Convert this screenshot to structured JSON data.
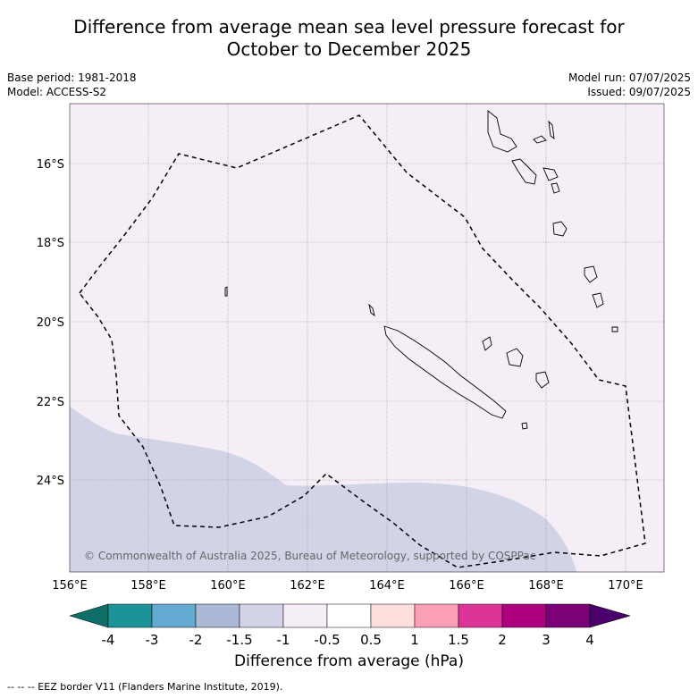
{
  "header": {
    "title_line1": "Difference from average mean sea level pressure forecast for",
    "title_line2": "October to December 2025",
    "base_period": "Base period: 1981-2018",
    "model": "Model: ACCESS-S2",
    "model_run": "Model run: 07/07/2025",
    "issued": "Issued: 09/07/2025"
  },
  "map": {
    "x_ticks": [
      "156°E",
      "158°E",
      "160°E",
      "162°E",
      "164°E",
      "166°E",
      "168°E",
      "170°E"
    ],
    "y_ticks": [
      "16°S",
      "18°S",
      "20°S",
      "22°S",
      "24°S"
    ],
    "copyright": "© Commonwealth of Australia 2025, Bureau of Meteorology, supported by COSPPac",
    "background_color": "#f5eef6",
    "anomaly_color": "#d2d3e6"
  },
  "colorbar": {
    "labels": [
      "-4",
      "-3",
      "-2",
      "-1.5",
      "-1",
      "-0.5",
      "0.5",
      "1",
      "1.5",
      "2",
      "3",
      "4"
    ],
    "colors": [
      "#0f6e68",
      "#1b9399",
      "#64a9d0",
      "#a9b9d6",
      "#d2d3e6",
      "#f5eef6",
      "#ffffff",
      "#fde0dd",
      "#fa9fb5",
      "#dd3497",
      "#ae017e",
      "#7a0177",
      "#49006a"
    ],
    "title": "Difference from average (hPa)"
  },
  "footnote": "--  --  -- EEZ border V11 (Flanders Marine Institute, 2019)."
}
